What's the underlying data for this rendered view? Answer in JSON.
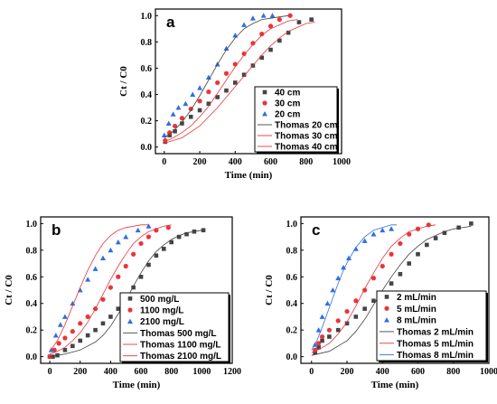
{
  "colors": {
    "black": "#444444",
    "red": "#e8353a",
    "blue": "#2f6fe0"
  },
  "chart_data": [
    {
      "type": "scatter",
      "panel_label": "a",
      "xlabel": "Time (min)",
      "ylabel": "Ct / C0",
      "xlim": [
        -50,
        1000
      ],
      "ylim": [
        -0.05,
        1.05
      ],
      "xticks": [
        0,
        200,
        400,
        600,
        800,
        1000
      ],
      "yticks": [
        0.0,
        0.2,
        0.4,
        0.6,
        0.8,
        1.0
      ],
      "legend_position": "bottom-right",
      "series": [
        {
          "name": "40 cm",
          "marker": "square",
          "color": "black",
          "x": [
            5,
            30,
            60,
            100,
            150,
            200,
            250,
            300,
            350,
            400,
            450,
            500,
            550,
            600,
            650,
            700,
            760,
            830
          ],
          "y": [
            0.04,
            0.09,
            0.12,
            0.18,
            0.23,
            0.28,
            0.33,
            0.38,
            0.43,
            0.49,
            0.55,
            0.62,
            0.68,
            0.74,
            0.81,
            0.87,
            0.95,
            0.97
          ]
        },
        {
          "name": "30 cm",
          "marker": "circle",
          "color": "red",
          "x": [
            5,
            30,
            60,
            100,
            150,
            200,
            250,
            300,
            350,
            400,
            450,
            500,
            550,
            600,
            650,
            710
          ],
          "y": [
            0.05,
            0.11,
            0.16,
            0.22,
            0.29,
            0.35,
            0.42,
            0.49,
            0.56,
            0.63,
            0.71,
            0.79,
            0.86,
            0.92,
            0.97,
            1.0
          ]
        },
        {
          "name": "20 cm",
          "marker": "triangle",
          "color": "blue",
          "x": [
            0,
            25,
            50,
            80,
            120,
            160,
            200,
            250,
            300,
            350,
            400,
            450,
            500,
            560,
            610
          ],
          "y": [
            0.09,
            0.18,
            0.25,
            0.3,
            0.33,
            0.4,
            0.45,
            0.53,
            0.63,
            0.75,
            0.85,
            0.93,
            0.98,
            1.0,
            1.0
          ]
        },
        {
          "name": "Thomas 20 cm",
          "marker": "line",
          "color": "black",
          "x": [
            0,
            50,
            100,
            150,
            200,
            250,
            300,
            350,
            400,
            450,
            500,
            550,
            600,
            650,
            700
          ],
          "y": [
            0.07,
            0.12,
            0.19,
            0.28,
            0.39,
            0.51,
            0.63,
            0.74,
            0.83,
            0.9,
            0.94,
            0.97,
            0.98,
            0.99,
            1.0
          ]
        },
        {
          "name": "Thomas 30 cm",
          "marker": "line",
          "color": "red",
          "x": [
            0,
            50,
            100,
            150,
            200,
            250,
            300,
            350,
            400,
            450,
            500,
            550,
            600,
            650,
            700,
            750
          ],
          "y": [
            0.04,
            0.07,
            0.11,
            0.16,
            0.23,
            0.31,
            0.41,
            0.51,
            0.61,
            0.7,
            0.78,
            0.85,
            0.9,
            0.93,
            0.96,
            0.97
          ]
        },
        {
          "name": "Thomas 40 cm",
          "marker": "line",
          "color": "red",
          "x": [
            0,
            100,
            200,
            300,
            350,
            400,
            450,
            500,
            550,
            600,
            650,
            700,
            750,
            800,
            850
          ],
          "y": [
            0.03,
            0.07,
            0.16,
            0.3,
            0.38,
            0.46,
            0.54,
            0.62,
            0.7,
            0.77,
            0.83,
            0.88,
            0.91,
            0.94,
            0.95
          ]
        }
      ]
    },
    {
      "type": "scatter",
      "panel_label": "b",
      "xlabel": "Time (min)",
      "ylabel": "Ct / C0",
      "xlim": [
        -60,
        1200
      ],
      "ylim": [
        -0.05,
        1.05
      ],
      "xticks": [
        0,
        200,
        400,
        600,
        800,
        1000,
        1200
      ],
      "yticks": [
        0.0,
        0.2,
        0.4,
        0.6,
        0.8,
        1.0
      ],
      "legend_position": "bottom-right",
      "series": [
        {
          "name": "500 mg/L",
          "marker": "square",
          "color": "black",
          "x": [
            0,
            20,
            50,
            100,
            150,
            200,
            250,
            300,
            350,
            400,
            450,
            500,
            550,
            600,
            650,
            700,
            750,
            800,
            850,
            900,
            950,
            1010
          ],
          "y": [
            0.0,
            0.0,
            0.01,
            0.05,
            0.08,
            0.12,
            0.16,
            0.2,
            0.25,
            0.3,
            0.36,
            0.44,
            0.52,
            0.6,
            0.69,
            0.76,
            0.81,
            0.86,
            0.9,
            0.92,
            0.94,
            0.95
          ]
        },
        {
          "name": "1100 mg/L",
          "marker": "circle",
          "color": "red",
          "x": [
            0,
            30,
            60,
            100,
            150,
            200,
            250,
            300,
            350,
            400,
            450,
            500,
            550,
            600,
            650,
            700,
            780
          ],
          "y": [
            0.0,
            0.05,
            0.1,
            0.14,
            0.19,
            0.25,
            0.3,
            0.36,
            0.43,
            0.52,
            0.6,
            0.68,
            0.77,
            0.85,
            0.9,
            0.95,
            0.97
          ]
        },
        {
          "name": "2100 mg/L",
          "marker": "triangle",
          "color": "blue",
          "x": [
            10,
            40,
            70,
            100,
            150,
            200,
            250,
            300,
            350,
            400,
            450,
            500,
            580,
            650
          ],
          "y": [
            0.05,
            0.16,
            0.24,
            0.3,
            0.4,
            0.5,
            0.58,
            0.66,
            0.74,
            0.8,
            0.86,
            0.9,
            0.95,
            0.98
          ]
        },
        {
          "name": "Thomas 500 mg/L",
          "marker": "line",
          "color": "black",
          "x": [
            0,
            100,
            200,
            300,
            350,
            400,
            450,
            500,
            550,
            600,
            650,
            700,
            750,
            800,
            850,
            900,
            1000
          ],
          "y": [
            0.0,
            0.02,
            0.05,
            0.11,
            0.16,
            0.23,
            0.32,
            0.42,
            0.53,
            0.63,
            0.72,
            0.79,
            0.84,
            0.88,
            0.91,
            0.93,
            0.95
          ]
        },
        {
          "name": "Thomas 1100 mg/L",
          "marker": "line",
          "color": "red",
          "x": [
            0,
            50,
            100,
            150,
            200,
            250,
            300,
            350,
            400,
            450,
            500,
            550,
            600,
            650,
            700,
            750,
            800
          ],
          "y": [
            0.02,
            0.04,
            0.07,
            0.12,
            0.18,
            0.26,
            0.36,
            0.47,
            0.58,
            0.68,
            0.77,
            0.85,
            0.9,
            0.94,
            0.96,
            0.98,
            0.99
          ]
        },
        {
          "name": "Thomas 2100 mg/L",
          "marker": "line",
          "color": "red",
          "x": [
            0,
            50,
            100,
            150,
            200,
            250,
            300,
            350,
            400,
            450,
            500,
            550,
            600,
            650
          ],
          "y": [
            0.04,
            0.12,
            0.24,
            0.38,
            0.52,
            0.65,
            0.76,
            0.85,
            0.91,
            0.95,
            0.97,
            0.98,
            0.99,
            0.99
          ]
        }
      ]
    },
    {
      "type": "scatter",
      "panel_label": "c",
      "xlabel": "Time (min)",
      "ylabel": "Ct / C0",
      "xlim": [
        -60,
        1000
      ],
      "ylim": [
        -0.05,
        1.05
      ],
      "xticks": [
        0,
        200,
        400,
        600,
        800,
        1000
      ],
      "yticks": [
        0.0,
        0.2,
        0.4,
        0.6,
        0.8,
        1.0
      ],
      "legend_position": "bottom-right",
      "series": [
        {
          "name": "2 mL/min",
          "marker": "square",
          "color": "black",
          "x": [
            20,
            40,
            60,
            100,
            150,
            200,
            250,
            300,
            350,
            400,
            450,
            500,
            550,
            600,
            650,
            700,
            750,
            830,
            900
          ],
          "y": [
            0.03,
            0.07,
            0.12,
            0.15,
            0.2,
            0.25,
            0.3,
            0.36,
            0.42,
            0.48,
            0.55,
            0.62,
            0.7,
            0.77,
            0.84,
            0.89,
            0.93,
            0.97,
            1.0
          ]
        },
        {
          "name": "5 mL/min",
          "marker": "circle",
          "color": "red",
          "x": [
            20,
            40,
            60,
            100,
            150,
            200,
            250,
            300,
            350,
            400,
            450,
            500,
            550,
            600,
            660
          ],
          "y": [
            0.05,
            0.1,
            0.15,
            0.2,
            0.27,
            0.34,
            0.42,
            0.5,
            0.59,
            0.68,
            0.77,
            0.85,
            0.92,
            0.96,
            0.99
          ]
        },
        {
          "name": "8 mL/min",
          "marker": "triangle",
          "color": "blue",
          "x": [
            20,
            40,
            60,
            90,
            120,
            150,
            180,
            210,
            250,
            300,
            350,
            400,
            450
          ],
          "y": [
            0.09,
            0.2,
            0.3,
            0.4,
            0.5,
            0.59,
            0.67,
            0.74,
            0.81,
            0.87,
            0.92,
            0.95,
            0.96
          ]
        },
        {
          "name": "Thomas 2 mL/min",
          "marker": "line",
          "color": "black",
          "x": [
            0,
            100,
            200,
            250,
            300,
            350,
            400,
            450,
            500,
            550,
            600,
            650,
            700,
            750,
            800,
            900
          ],
          "y": [
            0.01,
            0.04,
            0.12,
            0.19,
            0.28,
            0.39,
            0.5,
            0.6,
            0.69,
            0.77,
            0.83,
            0.88,
            0.91,
            0.94,
            0.96,
            0.98
          ]
        },
        {
          "name": "Thomas 5 mL/min",
          "marker": "line",
          "color": "red",
          "x": [
            0,
            50,
            100,
            150,
            200,
            250,
            300,
            350,
            400,
            450,
            500,
            550,
            600,
            650,
            700
          ],
          "y": [
            0.03,
            0.06,
            0.1,
            0.17,
            0.26,
            0.38,
            0.51,
            0.63,
            0.74,
            0.83,
            0.89,
            0.94,
            0.96,
            0.98,
            0.99
          ]
        },
        {
          "name": "Thomas 8 mL/min",
          "marker": "line",
          "color": "blue",
          "x": [
            0,
            30,
            60,
            90,
            120,
            150,
            180,
            210,
            250,
            300,
            350,
            400,
            450,
            480
          ],
          "y": [
            0.05,
            0.12,
            0.22,
            0.33,
            0.44,
            0.55,
            0.65,
            0.73,
            0.82,
            0.9,
            0.95,
            0.97,
            0.99,
            0.99
          ]
        }
      ]
    }
  ]
}
